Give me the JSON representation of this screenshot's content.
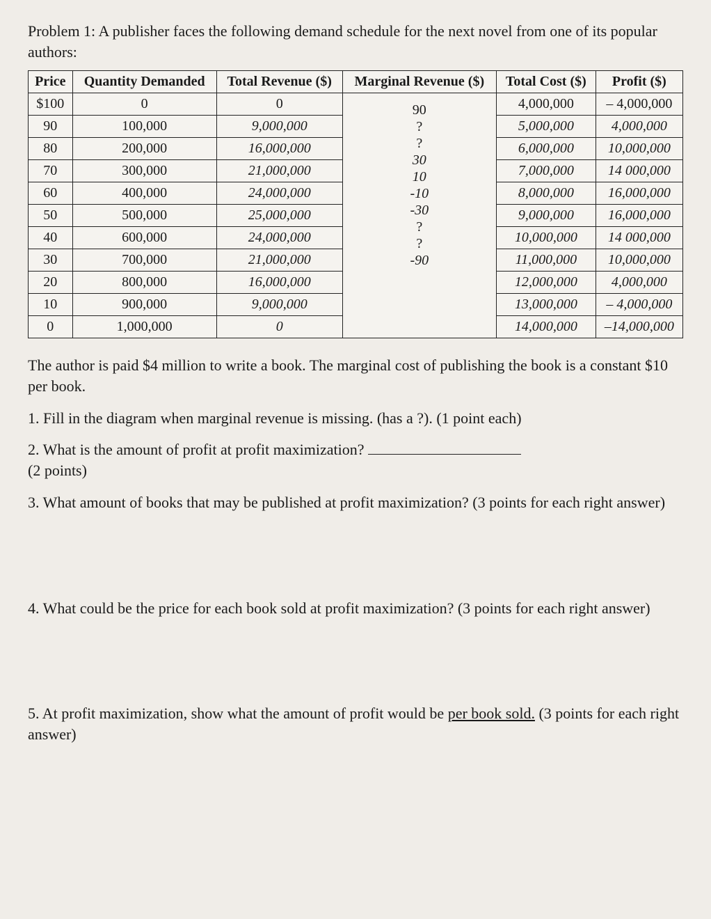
{
  "intro": "Problem 1: A publisher faces the following demand schedule for the next novel from one of its popular authors:",
  "headers": {
    "price": "Price",
    "qty": "Quantity Demanded",
    "tr": "Total Revenue ($)",
    "mr": "Marginal Revenue ($)",
    "tc": "Total Cost ($)",
    "profit": "Profit ($)"
  },
  "rows": [
    {
      "price": "$100",
      "qty": "0",
      "tr": "0",
      "tc": "4,000,000",
      "profit": "– 4,000,000",
      "tc_italic": false,
      "profit_italic": false
    },
    {
      "price": "90",
      "qty": "100,000",
      "tr": "9,000,000",
      "tc": "5,000,000",
      "profit": "4,000,000",
      "tc_italic": true,
      "profit_italic": true,
      "tr_italic": true
    },
    {
      "price": "80",
      "qty": "200,000",
      "tr": "16,000,000",
      "tc": "6,000,000",
      "profit": "10,000,000",
      "tc_italic": true,
      "profit_italic": true,
      "tr_italic": true
    },
    {
      "price": "70",
      "qty": "300,000",
      "tr": "21,000,000",
      "tc": "7,000,000",
      "profit": "14 000,000",
      "tc_italic": true,
      "profit_italic": true,
      "tr_italic": true
    },
    {
      "price": "60",
      "qty": "400,000",
      "tr": "24,000,000",
      "tc": "8,000,000",
      "profit": "16,000,000",
      "tc_italic": true,
      "profit_italic": true,
      "tr_italic": true
    },
    {
      "price": "50",
      "qty": "500,000",
      "tr": "25,000,000",
      "tc": "9,000,000",
      "profit": "16,000,000",
      "tc_italic": true,
      "profit_italic": true,
      "tr_italic": true
    },
    {
      "price": "40",
      "qty": "600,000",
      "tr": "24,000,000",
      "tc": "10,000,000",
      "profit": "14 000,000",
      "tc_italic": true,
      "profit_italic": true,
      "tr_italic": true
    },
    {
      "price": "30",
      "qty": "700,000",
      "tr": "21,000,000",
      "tc": "11,000,000",
      "profit": "10,000,000",
      "tc_italic": true,
      "profit_italic": true,
      "tr_italic": true
    },
    {
      "price": "20",
      "qty": "800,000",
      "tr": "16,000,000",
      "tc": "12,000,000",
      "profit": "4,000,000",
      "tc_italic": true,
      "profit_italic": true,
      "tr_italic": true
    },
    {
      "price": "10",
      "qty": "900,000",
      "tr": "9,000,000",
      "tc": "13,000,000",
      "profit": "– 4,000,000",
      "tc_italic": true,
      "profit_italic": true,
      "tr_italic": true
    },
    {
      "price": "0",
      "qty": "1,000,000",
      "tr": "0",
      "tc": "14,000,000",
      "profit": "–14,000,000",
      "tc_italic": true,
      "profit_italic": true,
      "tr_italic": true
    }
  ],
  "mr_values": [
    "90",
    "?",
    "?",
    "30",
    "10",
    "-10",
    "-30",
    "?",
    "?",
    "-90"
  ],
  "note": "The author is paid $4 million to write a book. The marginal cost of publishing the book is a constant $10 per book.",
  "q1": "1. Fill in the diagram when marginal revenue is missing. (has a ?). (1 point each)",
  "q2a": "2. What is the amount of profit at profit maximization? ",
  "q2b": "(2 points)",
  "q3": "3. What amount of books that may be published at profit maximization? (3 points for each right answer)",
  "q4": "4. What could be the price for each book sold at profit maximization? (3 points for each right answer)",
  "q5a": "5. At profit maximization, show what the amount of profit would be ",
  "q5b": "per book sold.",
  "q5c": " (3 points for each right answer)"
}
